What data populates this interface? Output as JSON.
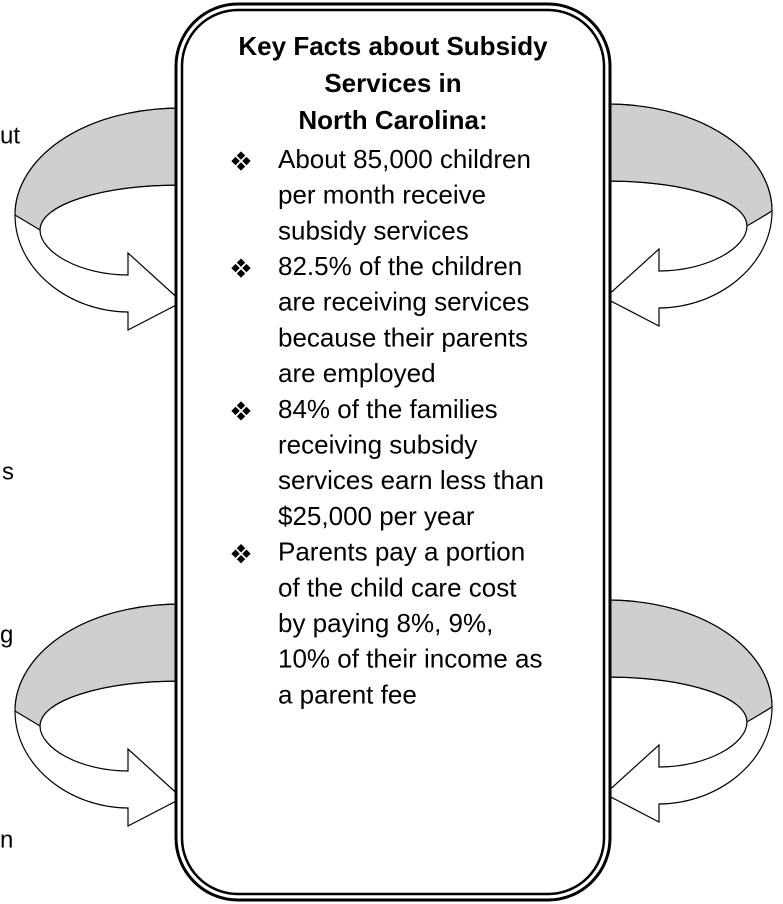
{
  "box": {
    "title": [
      "Key Facts about Subsidy",
      "Services in",
      "North Carolina:"
    ],
    "bullets": [
      [
        "About 85,000 children",
        "per month receive",
        "subsidy services"
      ],
      [
        "82.5% of the children",
        "are receiving services",
        "because their parents",
        "are employed"
      ],
      [
        "84% of the families",
        "receiving subsidy",
        "services earn less than",
        "$25,000 per year"
      ],
      [
        "Parents pay a portion",
        "of the child care cost",
        "by paying 8%, 9%,",
        "10% of their income as",
        "a parent fee"
      ]
    ]
  },
  "margin_fragments": [
    "ut",
    "s",
    "g",
    "n"
  ]
}
